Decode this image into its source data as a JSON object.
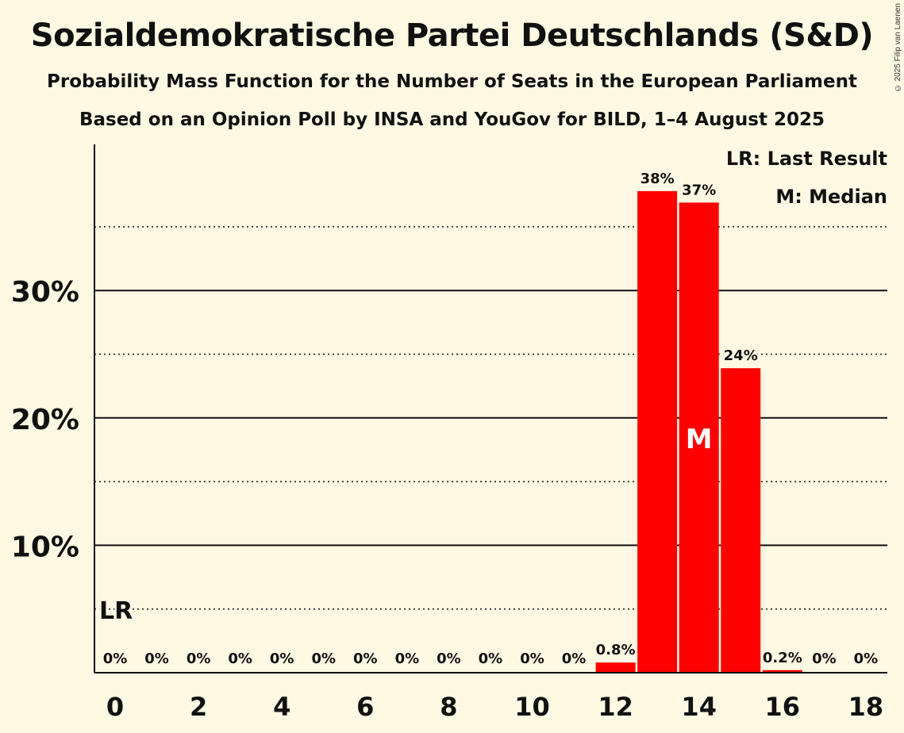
{
  "title": "Sozialdemokratische Partei Deutschlands (S&D)",
  "subtitle": "Probability Mass Function for the Number of Seats in the European Parliament",
  "source": "Based on an Opinion Poll by INSA and YouGov for BILD, 1–4 August 2025",
  "copyright": "© 2025 Filip van Laenen",
  "legend": {
    "last_result": "LR: Last Result",
    "median": "M: Median"
  },
  "colors": {
    "bar": "#FF0000",
    "background": "#FFF8E3",
    "axis": "#111111"
  },
  "chart_data": {
    "type": "bar",
    "categories": [
      0,
      1,
      2,
      3,
      4,
      5,
      6,
      7,
      8,
      9,
      10,
      11,
      12,
      13,
      14,
      15,
      16,
      17,
      18
    ],
    "values": [
      0,
      0,
      0,
      0,
      0,
      0,
      0,
      0,
      0,
      0,
      0,
      0,
      0.8,
      37.8,
      36.9,
      23.9,
      0.2,
      0,
      0
    ],
    "data_labels": [
      "0%",
      "0%",
      "0%",
      "0%",
      "0%",
      "0%",
      "0%",
      "0%",
      "0%",
      "0%",
      "0%",
      "0%",
      "0.8%",
      "38%",
      "37%",
      "24%",
      "0.2%",
      "0%",
      "0%"
    ],
    "x_tick_labels": [
      "0",
      "2",
      "4",
      "6",
      "8",
      "10",
      "12",
      "14",
      "16",
      "18"
    ],
    "x_tick_values": [
      0,
      2,
      4,
      6,
      8,
      10,
      12,
      14,
      16,
      18
    ],
    "y_tick_labels": [
      "10%",
      "20%",
      "30%"
    ],
    "y_tick_values": [
      10,
      20,
      30
    ],
    "y_minor_gridlines": [
      5,
      15,
      25,
      35
    ],
    "ylim": [
      0,
      41.5
    ],
    "xlabel": "",
    "ylabel": "",
    "last_result": {
      "seat": 0,
      "label": "LR"
    },
    "median": {
      "seat": 14,
      "label": "M"
    },
    "grid": true,
    "legend_position": "top-right"
  }
}
